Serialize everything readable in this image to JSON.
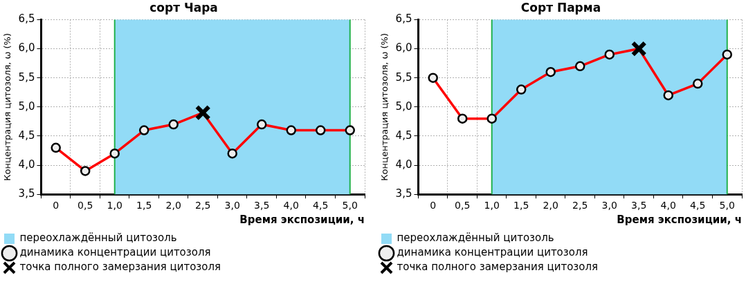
{
  "chart_data": [
    {
      "type": "line",
      "title": "сорт Чара",
      "xlabel": "Время экспозиции, ч",
      "ylabel": "Концентрация цитозоля, ω (%)",
      "categories": [
        "0",
        "0,5",
        "1,0",
        "1,5",
        "2,0",
        "2,5",
        "3,0",
        "3,5",
        "4,0",
        "4,5",
        "5,0"
      ],
      "series": [
        {
          "name": "динамика концентрации цитозоля",
          "color": "#ff0000",
          "marker": "circle",
          "values": [
            4.3,
            3.9,
            4.2,
            4.6,
            4.7,
            4.9,
            4.2,
            4.7,
            4.6,
            4.6,
            4.6
          ]
        },
        {
          "name": "точка полного замерзания цитозоля",
          "type": "scatter",
          "color": "#000000",
          "marker": "cross",
          "values": [
            null,
            null,
            null,
            null,
            null,
            4.9,
            null,
            null,
            null,
            null,
            null
          ]
        }
      ],
      "bands": [
        {
          "axis": "x",
          "from": "1,0",
          "to": "5,0",
          "label": "переохлаждённый цитозоль",
          "color": "#92dbf6"
        }
      ],
      "ylim": [
        3.5,
        6.5
      ],
      "yticks": [
        {
          "value": 3.5,
          "label": "3,5"
        },
        {
          "value": 4,
          "label": "4,0"
        },
        {
          "value": 4.5,
          "label": "4,5"
        },
        {
          "value": 5,
          "label": "5,0"
        },
        {
          "value": 5.5,
          "label": "5,5"
        },
        {
          "value": 6,
          "label": "6,0"
        },
        {
          "value": 6.5,
          "label": "6,5"
        }
      ],
      "grid": true,
      "legend": "bottom"
    },
    {
      "type": "line",
      "title": "Сорт Парма",
      "xlabel": "Время экспозиции, ч",
      "ylabel": "Концентрация цитозоля, ω (%)",
      "categories": [
        "0",
        "0,5",
        "1,0",
        "1,5",
        "2,0",
        "2,5",
        "3,0",
        "3,5",
        "4,0",
        "4,5",
        "5,0"
      ],
      "series": [
        {
          "name": "динамика концентрации цитозоля",
          "color": "#ff0000",
          "marker": "circle",
          "values": [
            5.5,
            4.8,
            4.8,
            5.3,
            5.6,
            5.7,
            5.9,
            6.0,
            5.2,
            5.4,
            5.9
          ]
        },
        {
          "name": "точка полного замерзания цитозоля",
          "type": "scatter",
          "color": "#000000",
          "marker": "cross",
          "values": [
            null,
            null,
            null,
            null,
            null,
            null,
            null,
            6.0,
            null,
            null,
            null
          ]
        }
      ],
      "bands": [
        {
          "axis": "x",
          "from": "1,0",
          "to": "5,0",
          "label": "переохлаждённый цитозоль",
          "color": "#92dbf6"
        }
      ],
      "ylim": [
        3.5,
        6.5
      ],
      "yticks": [
        {
          "value": 3.5,
          "label": "3,5"
        },
        {
          "value": 4,
          "label": "4,0"
        },
        {
          "value": 4.5,
          "label": "4,5"
        },
        {
          "value": 5,
          "label": "5,0"
        },
        {
          "value": 5.5,
          "label": "5,5"
        },
        {
          "value": 6,
          "label": "6,0"
        },
        {
          "value": 6.5,
          "label": "6,5"
        }
      ],
      "grid": true,
      "legend": "bottom"
    }
  ]
}
